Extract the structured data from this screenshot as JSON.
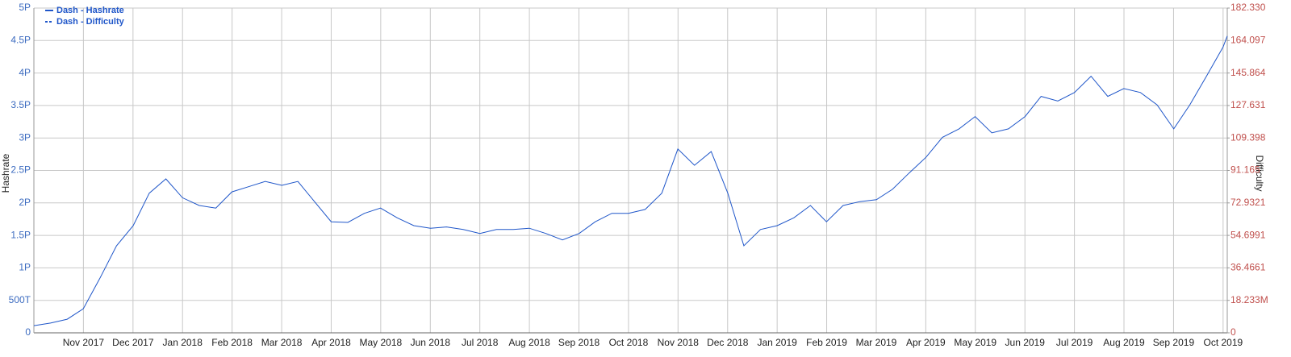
{
  "chart_data": {
    "type": "line",
    "x": [
      2017.75,
      2017.778,
      2017.806,
      2017.833,
      2017.861,
      2017.889,
      2017.917,
      2017.944,
      2017.972,
      2018.0,
      2018.028,
      2018.056,
      2018.083,
      2018.111,
      2018.139,
      2018.167,
      2018.194,
      2018.222,
      2018.25,
      2018.278,
      2018.306,
      2018.333,
      2018.361,
      2018.389,
      2018.417,
      2018.444,
      2018.472,
      2018.5,
      2018.528,
      2018.556,
      2018.583,
      2018.611,
      2018.639,
      2018.667,
      2018.694,
      2018.722,
      2018.75,
      2018.778,
      2018.806,
      2018.833,
      2018.861,
      2018.889,
      2018.917,
      2018.944,
      2018.972,
      2019.0,
      2019.028,
      2019.056,
      2019.083,
      2019.111,
      2019.139,
      2019.167,
      2019.194,
      2019.222,
      2019.25,
      2019.278,
      2019.306,
      2019.333,
      2019.361,
      2019.389,
      2019.417,
      2019.444,
      2019.472,
      2019.5,
      2019.528,
      2019.556,
      2019.583,
      2019.611,
      2019.639,
      2019.667,
      2019.694,
      2019.722,
      2019.75,
      2019.757
    ],
    "series": [
      {
        "name": "Dash - Hashrate",
        "color": "#1f56c9",
        "dashed": false,
        "values": [
          0.11,
          0.15,
          0.21,
          0.37,
          0.84,
          1.34,
          1.65,
          2.15,
          2.37,
          2.08,
          1.96,
          1.92,
          2.17,
          2.25,
          2.33,
          2.27,
          2.33,
          2.02,
          1.71,
          1.7,
          1.84,
          1.92,
          1.77,
          1.65,
          1.61,
          1.63,
          1.59,
          1.53,
          1.59,
          1.59,
          1.61,
          1.53,
          1.43,
          1.53,
          1.71,
          1.84,
          1.84,
          1.9,
          2.15,
          2.83,
          2.58,
          2.79,
          2.15,
          1.34,
          1.59,
          1.65,
          1.77,
          1.96,
          1.71,
          1.96,
          2.02,
          2.05,
          2.21,
          2.46,
          2.7,
          3.01,
          3.14,
          3.33,
          3.08,
          3.14,
          3.33,
          3.64,
          3.57,
          3.7,
          3.95,
          3.64,
          3.76,
          3.7,
          3.51,
          3.14,
          3.51,
          3.95,
          4.4,
          4.57
        ]
      },
      {
        "name": "Dash - Difficulty",
        "color": "#1f56c9",
        "dashed": true,
        "axis": "y2",
        "values": [
          null,
          null,
          null,
          null,
          null,
          null,
          null,
          null,
          null,
          null,
          null,
          null,
          null,
          null,
          null,
          null,
          null,
          null,
          null,
          null,
          null,
          null,
          null,
          null,
          null,
          null,
          null,
          null,
          null,
          null,
          null,
          null,
          null,
          null,
          null,
          null,
          null,
          null,
          null,
          null,
          null,
          null,
          null,
          null,
          null,
          null,
          null,
          null,
          null,
          null,
          null,
          null,
          null,
          null,
          null,
          null,
          null,
          null,
          null,
          null,
          null,
          null,
          null,
          null,
          null,
          null,
          null,
          null,
          null,
          null,
          null,
          null,
          null,
          null
        ]
      }
    ],
    "xlim": [
      2017.75,
      2019.757
    ],
    "xticks": [
      {
        "value": 2017.8333,
        "label": "Nov 2017"
      },
      {
        "value": 2017.9167,
        "label": "Dec 2017"
      },
      {
        "value": 2018.0,
        "label": "Jan 2018"
      },
      {
        "value": 2018.0833,
        "label": "Feb 2018"
      },
      {
        "value": 2018.1667,
        "label": "Mar 2018"
      },
      {
        "value": 2018.25,
        "label": "Apr 2018"
      },
      {
        "value": 2018.3333,
        "label": "May 2018"
      },
      {
        "value": 2018.4167,
        "label": "Jun 2018"
      },
      {
        "value": 2018.5,
        "label": "Jul 2018"
      },
      {
        "value": 2018.5833,
        "label": "Aug 2018"
      },
      {
        "value": 2018.6667,
        "label": "Sep 2018"
      },
      {
        "value": 2018.75,
        "label": "Oct 2018"
      },
      {
        "value": 2018.8333,
        "label": "Nov 2018"
      },
      {
        "value": 2018.9167,
        "label": "Dec 2018"
      },
      {
        "value": 2019.0,
        "label": "Jan 2019"
      },
      {
        "value": 2019.0833,
        "label": "Feb 2019"
      },
      {
        "value": 2019.1667,
        "label": "Mar 2019"
      },
      {
        "value": 2019.25,
        "label": "Apr 2019"
      },
      {
        "value": 2019.3333,
        "label": "May 2019"
      },
      {
        "value": 2019.4167,
        "label": "Jun 2019"
      },
      {
        "value": 2019.5,
        "label": "Jul 2019"
      },
      {
        "value": 2019.5833,
        "label": "Aug 2019"
      },
      {
        "value": 2019.6667,
        "label": "Sep 2019"
      },
      {
        "value": 2019.75,
        "label": "Oct 2019"
      }
    ],
    "ylim": [
      0,
      5
    ],
    "yticks": [
      0,
      {
        "value": 0.5,
        "label": "500T"
      },
      {
        "value": 1,
        "label": "1P"
      },
      {
        "value": 1.5,
        "label": "1.5P"
      },
      {
        "value": 2,
        "label": "2P"
      },
      {
        "value": 2.5,
        "label": "2.5P"
      },
      {
        "value": 3,
        "label": "3P"
      },
      {
        "value": 3.5,
        "label": "3.5P"
      },
      {
        "value": 4,
        "label": "4P"
      },
      {
        "value": 4.5,
        "label": "4.5P"
      },
      {
        "value": 5,
        "label": "5P"
      }
    ],
    "y2lim": [
      0,
      182.33
    ],
    "y2ticks": [
      0,
      {
        "value": 18.233,
        "label": "18.233M"
      },
      36.4661,
      54.6991,
      72.9321,
      91.165,
      109.398,
      127.631,
      145.864,
      164.097,
      {
        "value": 182.33,
        "label": "182.330"
      }
    ],
    "y_label": "Hashrate",
    "y2_label": "Difficulty",
    "grid": true,
    "legend": "top-left"
  }
}
